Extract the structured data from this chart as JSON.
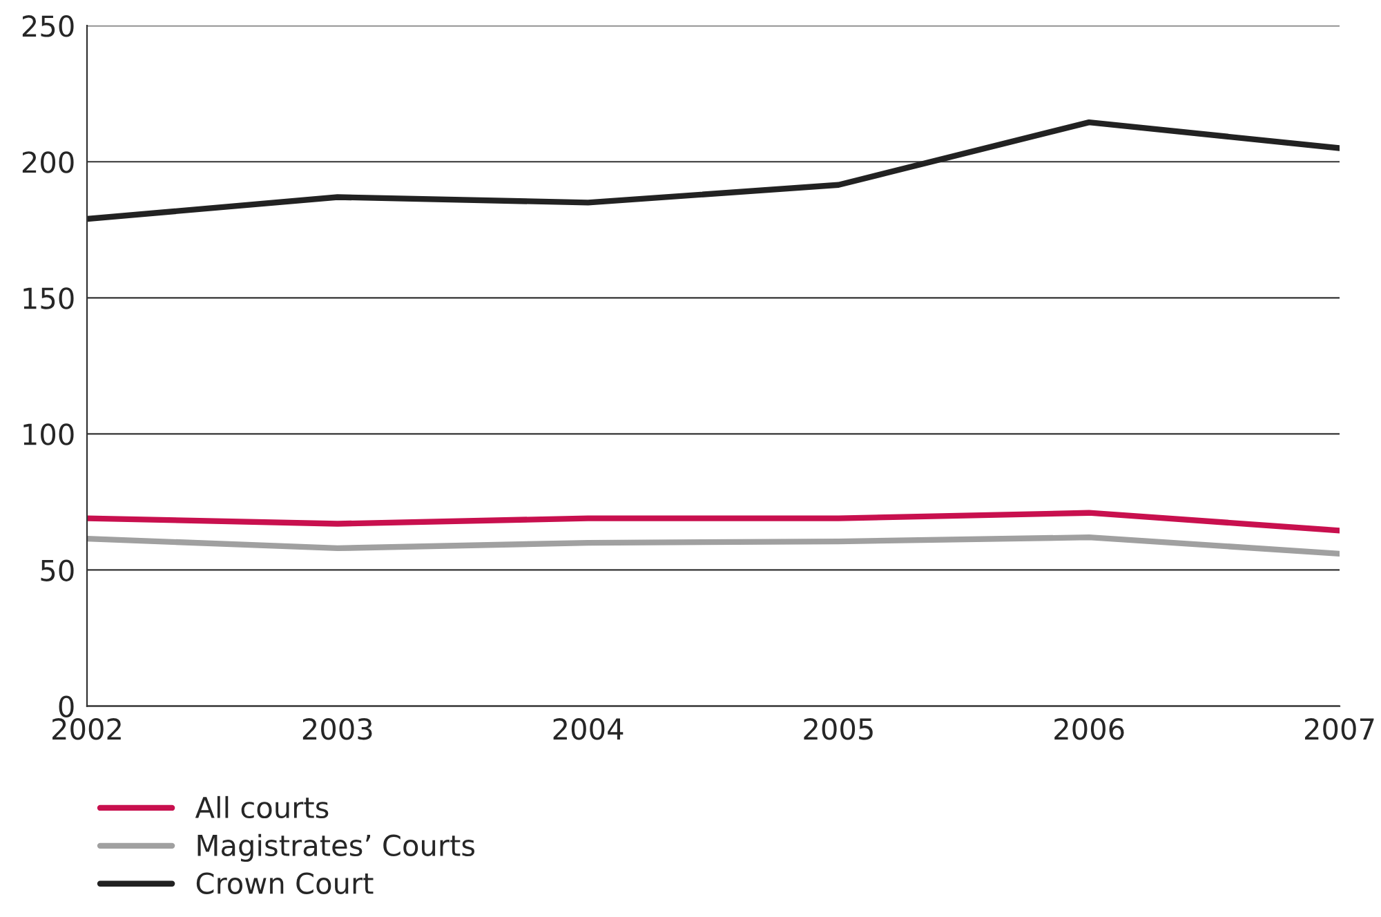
{
  "chart_data": {
    "type": "line",
    "x": [
      2002,
      2003,
      2004,
      2005,
      2006,
      2007
    ],
    "series": [
      {
        "name": "All courts",
        "color": "#c8104e",
        "values": [
          69,
          67,
          69,
          69,
          71,
          64.5
        ]
      },
      {
        "name": "Magistrates’ Courts",
        "color": "#a0a0a0",
        "values": [
          61.5,
          58,
          60,
          60.5,
          62,
          56
        ]
      },
      {
        "name": "Crown Court",
        "color": "#222222",
        "values": [
          179,
          187,
          185,
          191.5,
          214.5,
          205
        ]
      }
    ],
    "xlim": [
      2002,
      2007
    ],
    "xticks": [
      2002,
      2003,
      2004,
      2005,
      2006,
      2007
    ],
    "ylim": [
      0,
      250
    ],
    "yticks": [
      0,
      50,
      100,
      150,
      200,
      250
    ],
    "grid": "y",
    "legend": "bottom left",
    "line_style": "solid"
  }
}
